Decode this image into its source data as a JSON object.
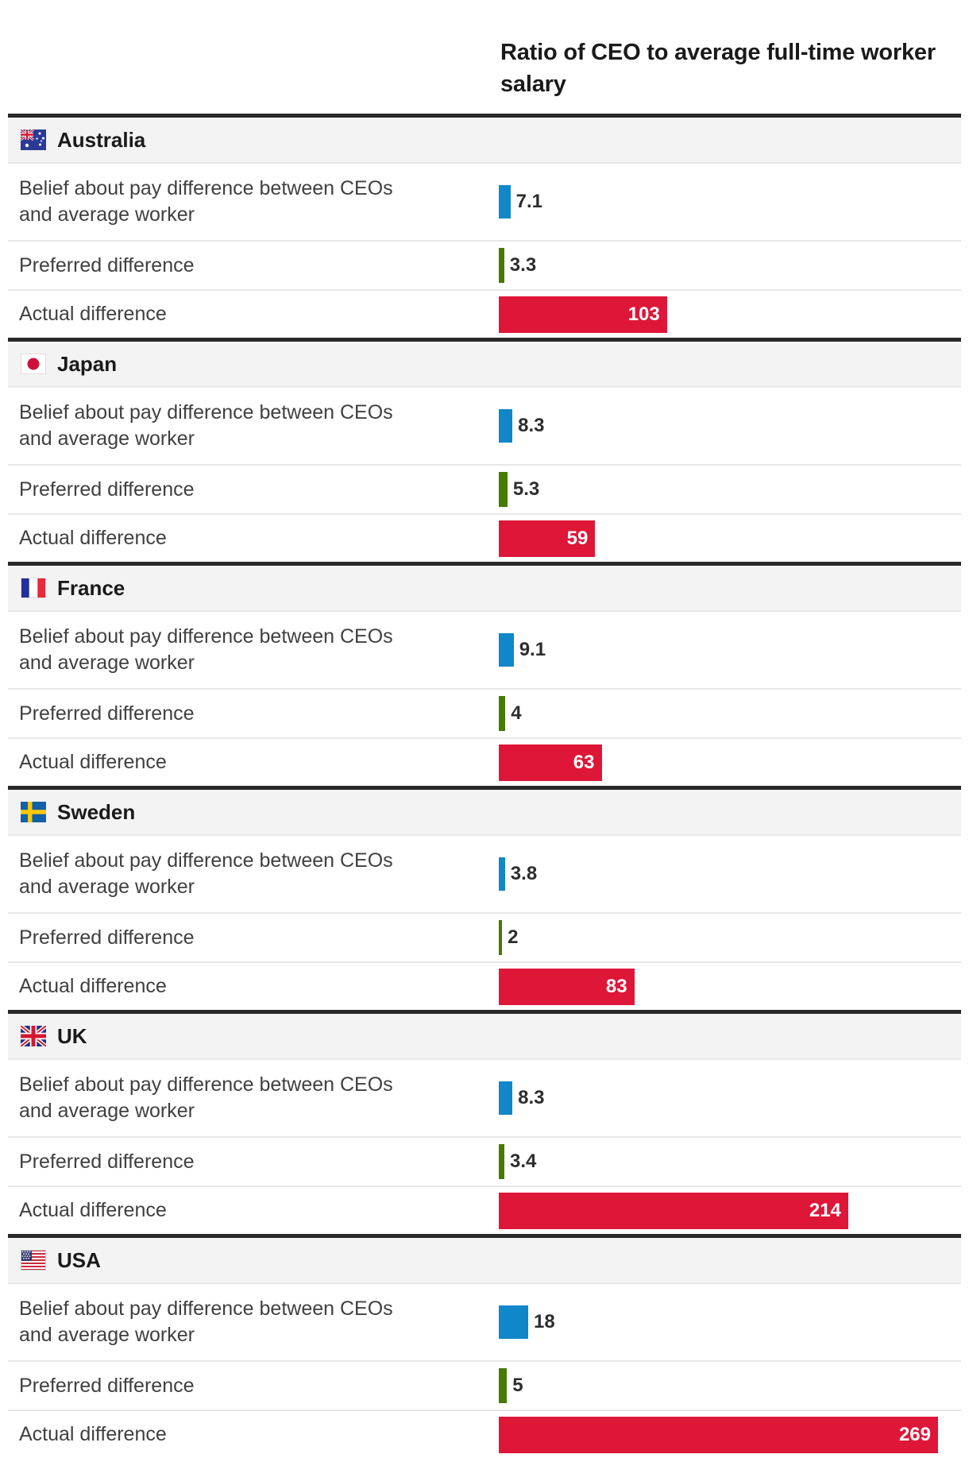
{
  "header_lines": [
    "Ratio of CEO to average full-time worker",
    "salary"
  ],
  "colors": {
    "belief": "#0f87c8",
    "preferred": "#447b00",
    "actual": "#de1638",
    "rule": "#282828",
    "header_bg": "#f3f3f3",
    "separator": "#e8e8e8",
    "value_text_inside_bar": "#ffffff"
  },
  "chart_data": {
    "type": "bar",
    "title": "Ratio of CEO to average full-time worker salary",
    "xlabel": "Ratio of CEO to average full-time worker salary",
    "xlim": [
      0,
      280
    ],
    "grid": false,
    "legend": "none",
    "row_series": [
      "belief",
      "preferred",
      "actual"
    ],
    "countries": [
      {
        "name": "Australia",
        "flag_icon": "australia-flag-icon",
        "rows": [
          {
            "label": "Belief about pay difference between CEOs and average worker",
            "series": "belief",
            "value": 7.1,
            "value_label": "7.1"
          },
          {
            "label": "Preferred difference",
            "series": "preferred",
            "value": 3.3,
            "value_label": "3.3"
          },
          {
            "label": "Actual difference",
            "series": "actual",
            "value": 103,
            "value_label": "103"
          }
        ]
      },
      {
        "name": "Japan",
        "flag_icon": "japan-flag-icon",
        "rows": [
          {
            "label": "Belief about pay difference between CEOs and average worker",
            "series": "belief",
            "value": 8.3,
            "value_label": "8.3"
          },
          {
            "label": "Preferred difference",
            "series": "preferred",
            "value": 5.3,
            "value_label": "5.3"
          },
          {
            "label": "Actual difference",
            "series": "actual",
            "value": 59,
            "value_label": "59"
          }
        ]
      },
      {
        "name": "France",
        "flag_icon": "france-flag-icon",
        "rows": [
          {
            "label": "Belief about pay difference between CEOs and average worker",
            "series": "belief",
            "value": 9.1,
            "value_label": "9.1"
          },
          {
            "label": "Preferred difference",
            "series": "preferred",
            "value": 4,
            "value_label": "4"
          },
          {
            "label": "Actual difference",
            "series": "actual",
            "value": 63,
            "value_label": "63"
          }
        ]
      },
      {
        "name": "Sweden",
        "flag_icon": "sweden-flag-icon",
        "rows": [
          {
            "label": "Belief about pay difference between CEOs and average worker",
            "series": "belief",
            "value": 3.8,
            "value_label": "3.8"
          },
          {
            "label": "Preferred difference",
            "series": "preferred",
            "value": 2,
            "value_label": "2"
          },
          {
            "label": "Actual difference",
            "series": "actual",
            "value": 83,
            "value_label": "83"
          }
        ]
      },
      {
        "name": "UK",
        "flag_icon": "uk-flag-icon",
        "rows": [
          {
            "label": "Belief about pay difference between CEOs and average worker",
            "series": "belief",
            "value": 8.3,
            "value_label": "8.3"
          },
          {
            "label": "Preferred difference",
            "series": "preferred",
            "value": 3.4,
            "value_label": "3.4"
          },
          {
            "label": "Actual difference",
            "series": "actual",
            "value": 214,
            "value_label": "214"
          }
        ]
      },
      {
        "name": "USA",
        "flag_icon": "usa-flag-icon",
        "rows": [
          {
            "label": "Belief about pay difference between CEOs and average worker",
            "series": "belief",
            "value": 18,
            "value_label": "18"
          },
          {
            "label": "Preferred difference",
            "series": "preferred",
            "value": 5,
            "value_label": "5"
          },
          {
            "label": "Actual difference",
            "series": "actual",
            "value": 269,
            "value_label": "269"
          }
        ]
      }
    ]
  }
}
